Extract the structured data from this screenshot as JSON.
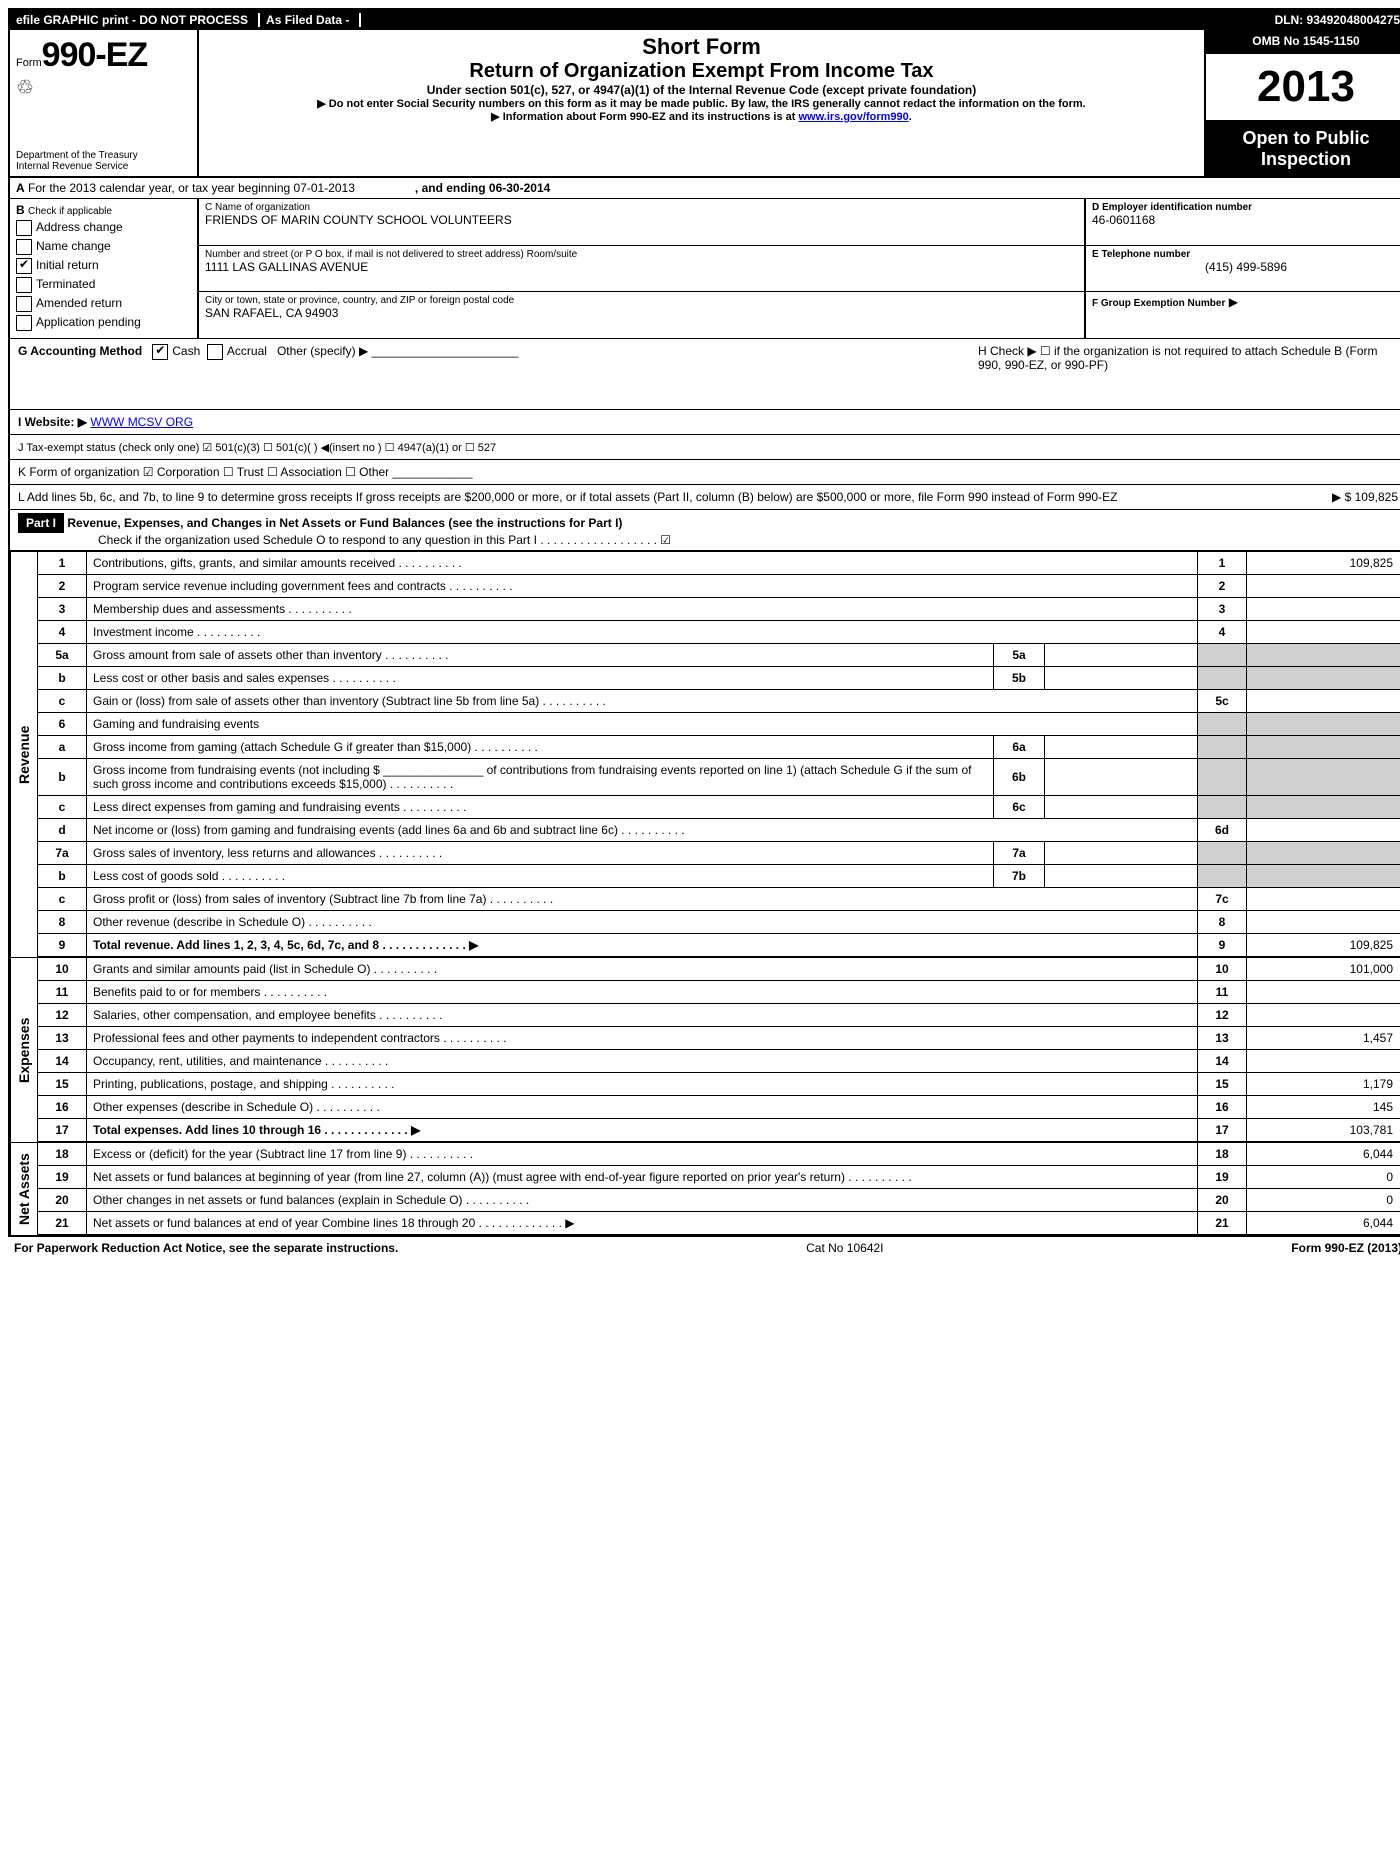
{
  "topbar": {
    "left1": "efile GRAPHIC print - DO NOT PROCESS",
    "left2": "As Filed Data -",
    "right": "DLN: 93492048004275"
  },
  "header": {
    "form_prefix": "Form",
    "form_number": "990-EZ",
    "short_form": "Short Form",
    "title": "Return of Organization Exempt From Income Tax",
    "subtitle": "Under section 501(c), 527, or 4947(a)(1) of the Internal Revenue Code (except private foundation)",
    "warn1": "▶ Do not enter Social Security numbers on this form as it may be made public. By law, the IRS generally cannot redact the information on the form.",
    "warn2_prefix": "▶ Information about Form 990-EZ and its instructions is at ",
    "warn2_link": "www.irs.gov/form990",
    "warn2_suffix": ".",
    "dept": "Department of the Treasury\nInternal Revenue Service",
    "omb": "OMB No 1545-1150",
    "year": "2013",
    "public": "Open to Public Inspection"
  },
  "lineA": {
    "label_bold": "A",
    "text": " For the 2013 calendar year, or tax year beginning 07-01-2013",
    "ending": ", and ending 06-30-2014"
  },
  "checkboxes": {
    "title_b": "B",
    "hint": "Check if applicable",
    "items": [
      "Address change",
      "Name change",
      "Initial return",
      "Terminated",
      "Amended return",
      "Application pending"
    ],
    "checked_index": 2
  },
  "entity": {
    "c_label": "C Name of organization",
    "c_value": "FRIENDS OF MARIN COUNTY SCHOOL VOLUNTEERS",
    "street_label": "Number and street (or P O box, if mail is not delivered to street address) Room/suite",
    "street_value": "1111 LAS GALLINAS AVENUE",
    "city_label": "City or town, state or province, country, and ZIP or foreign postal code",
    "city_value": "SAN RAFAEL, CA 94903",
    "d_label": "D Employer identification number",
    "d_value": "46-0601168",
    "e_label": "E Telephone number",
    "e_value": "(415) 499-5896",
    "f_label": "F Group Exemption Number",
    "f_arrow": "▶"
  },
  "g_line": {
    "label": "G Accounting Method",
    "cash": "Cash",
    "accrual": "Accrual",
    "other": "Other (specify) ▶",
    "h_text": "H  Check ▶ ☐ if the organization is not required to attach Schedule B (Form 990, 990-EZ, or 990-PF)"
  },
  "i_line": {
    "label": "I Website: ▶",
    "value": "WWW MCSV ORG"
  },
  "j_line": {
    "text": "J Tax-exempt status (check only one) ☑ 501(c)(3) ☐ 501(c)(  ) ◀(insert no ) ☐ 4947(a)(1) or ☐ 527"
  },
  "k_line": {
    "text": "K Form of organization  ☑ Corporation  ☐ Trust  ☐ Association  ☐ Other"
  },
  "l_line": {
    "text": "L Add lines 5b, 6c, and 7b, to line 9 to determine gross receipts  If gross receipts are $200,000 or more, or if total assets (Part II, column (B) below) are $500,000 or more, file Form 990 instead of Form 990-EZ",
    "amount": "▶ $ 109,825"
  },
  "part1": {
    "label": "Part I",
    "title": "Revenue, Expenses, and Changes in Net Assets or Fund Balances (see the instructions for Part I)",
    "check": "Check if the organization used Schedule O to respond to any question in this Part I  .  .  .  .  .  .  .  .  .  .  .  .  .  .  .  .  .  . ☑"
  },
  "sections": {
    "revenue": "Revenue",
    "expenses": "Expenses",
    "netassets": "Net Assets"
  },
  "rows": [
    {
      "n": "1",
      "desc": "Contributions, gifts, grants, and similar amounts received",
      "rn": "1",
      "rv": "109,825"
    },
    {
      "n": "2",
      "desc": "Program service revenue including government fees and contracts",
      "rn": "2",
      "rv": ""
    },
    {
      "n": "3",
      "desc": "Membership dues and assessments",
      "rn": "3",
      "rv": ""
    },
    {
      "n": "4",
      "desc": "Investment income",
      "rn": "4",
      "rv": ""
    },
    {
      "n": "5a",
      "desc": "Gross amount from sale of assets other than inventory",
      "mn": "5a",
      "mv": ""
    },
    {
      "n": "b",
      "desc": "Less  cost or other basis and sales expenses",
      "mn": "5b",
      "mv": ""
    },
    {
      "n": "c",
      "desc": "Gain or (loss) from sale of assets other than inventory (Subtract line 5b from line 5a)",
      "rn": "5c",
      "rv": ""
    },
    {
      "n": "6",
      "desc": "Gaming and fundraising events"
    },
    {
      "n": "a",
      "desc": "Gross income from gaming (attach Schedule G if greater than $15,000)",
      "mn": "6a",
      "mv": ""
    },
    {
      "n": "b",
      "desc": "Gross income from fundraising events (not including $ _______________ of contributions from fundraising events reported on line 1) (attach Schedule G if the sum of such gross income and contributions exceeds $15,000)",
      "mn": "6b",
      "mv": ""
    },
    {
      "n": "c",
      "desc": "Less  direct expenses from gaming and fundraising events",
      "mn": "6c",
      "mv": ""
    },
    {
      "n": "d",
      "desc": "Net income or (loss) from gaming and fundraising events (add lines 6a and 6b and subtract line 6c)",
      "rn": "6d",
      "rv": ""
    },
    {
      "n": "7a",
      "desc": "Gross sales of inventory, less returns and allowances",
      "mn": "7a",
      "mv": ""
    },
    {
      "n": "b",
      "desc": "Less  cost of goods sold",
      "mn": "7b",
      "mv": ""
    },
    {
      "n": "c",
      "desc": "Gross profit or (loss) from sales of inventory (Subtract line 7b from line 7a)",
      "rn": "7c",
      "rv": ""
    },
    {
      "n": "8",
      "desc": "Other revenue (describe in Schedule O)",
      "rn": "8",
      "rv": ""
    },
    {
      "n": "9",
      "desc": "Total revenue. Add lines 1, 2, 3, 4, 5c, 6d, 7c, and 8",
      "rn": "9",
      "rv": "109,825",
      "bold": true,
      "arrow": true
    }
  ],
  "exp_rows": [
    {
      "n": "10",
      "desc": "Grants and similar amounts paid (list in Schedule O)",
      "rn": "10",
      "rv": "101,000"
    },
    {
      "n": "11",
      "desc": "Benefits paid to or for members",
      "rn": "11",
      "rv": ""
    },
    {
      "n": "12",
      "desc": "Salaries, other compensation, and employee benefits",
      "rn": "12",
      "rv": ""
    },
    {
      "n": "13",
      "desc": "Professional fees and other payments to independent contractors",
      "rn": "13",
      "rv": "1,457"
    },
    {
      "n": "14",
      "desc": "Occupancy, rent, utilities, and maintenance",
      "rn": "14",
      "rv": ""
    },
    {
      "n": "15",
      "desc": "Printing, publications, postage, and shipping",
      "rn": "15",
      "rv": "1,179"
    },
    {
      "n": "16",
      "desc": "Other expenses (describe in Schedule O)",
      "rn": "16",
      "rv": "145"
    },
    {
      "n": "17",
      "desc": "Total expenses. Add lines 10 through 16",
      "rn": "17",
      "rv": "103,781",
      "bold": true,
      "arrow": true
    }
  ],
  "na_rows": [
    {
      "n": "18",
      "desc": "Excess or (deficit) for the year (Subtract line 17 from line 9)",
      "rn": "18",
      "rv": "6,044"
    },
    {
      "n": "19",
      "desc": "Net assets or fund balances at beginning of year (from line 27, column (A)) (must agree with end-of-year figure reported on prior year's return)",
      "rn": "19",
      "rv": "0"
    },
    {
      "n": "20",
      "desc": "Other changes in net assets or fund balances (explain in Schedule O)",
      "rn": "20",
      "rv": "0"
    },
    {
      "n": "21",
      "desc": "Net assets or fund balances at end of year  Combine lines 18 through 20",
      "rn": "21",
      "rv": "6,044",
      "arrow": true
    }
  ],
  "footer": {
    "left": "For Paperwork Reduction Act Notice, see the separate instructions.",
    "center": "Cat No 10642I",
    "right": "Form 990-EZ (2013)"
  }
}
